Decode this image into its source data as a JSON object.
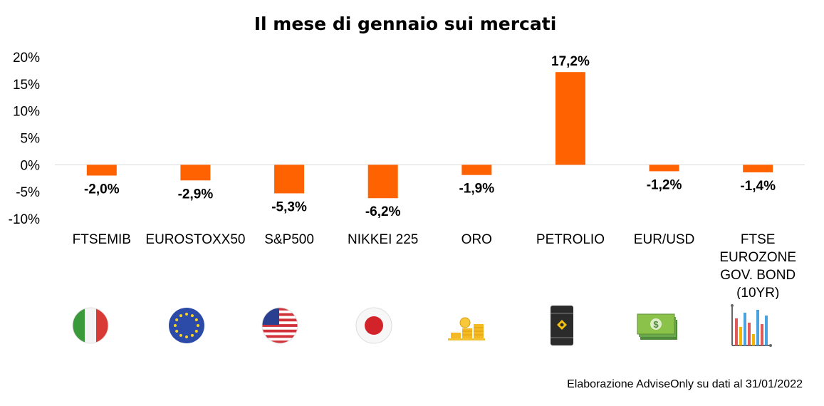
{
  "chart_data": {
    "type": "bar",
    "title": "Il mese di gennaio sui mercati",
    "categories": [
      "FTSEMIB",
      "EUROSTOXX50",
      "S&P500",
      "NIKKEI 225",
      "ORO",
      "PETROLIO",
      "EUR/USD",
      "FTSE EUROZONE GOV. BOND (10YR)"
    ],
    "category_lines": [
      [
        "FTSEMIB"
      ],
      [
        "EUROSTOXX50"
      ],
      [
        "S&P500"
      ],
      [
        "NIKKEI 225"
      ],
      [
        "ORO"
      ],
      [
        "PETROLIO"
      ],
      [
        "EUR/USD"
      ],
      [
        "FTSE",
        "EUROZONE",
        "GOV. BOND",
        "(10YR)"
      ]
    ],
    "values": [
      -2.0,
      -2.9,
      -5.3,
      -6.2,
      -1.9,
      17.2,
      -1.2,
      -1.4
    ],
    "data_labels": [
      "-2,0%",
      "-2,9%",
      "-5,3%",
      "-6,2%",
      "-1,9%",
      "17,2%",
      "-1,2%",
      "-1,4%"
    ],
    "yticks": [
      20,
      15,
      10,
      5,
      0,
      -5,
      -10
    ],
    "ytick_labels": [
      "20%",
      "15%",
      "10%",
      "5%",
      "0%",
      "-5%",
      "-10%"
    ],
    "ylim": [
      -10,
      20
    ],
    "xlabel": "",
    "ylabel": "",
    "bar_color": "#ff6200",
    "grid": false,
    "legend": "none"
  },
  "source_note": "Elaborazione AdviseOnly su dati al 31/01/2022",
  "icons": [
    "italy-flag-icon",
    "eu-flag-icon",
    "usa-flag-icon",
    "japan-flag-icon",
    "gold-coins-icon",
    "oil-barrel-icon",
    "banknotes-icon",
    "bar-chart-icon"
  ]
}
